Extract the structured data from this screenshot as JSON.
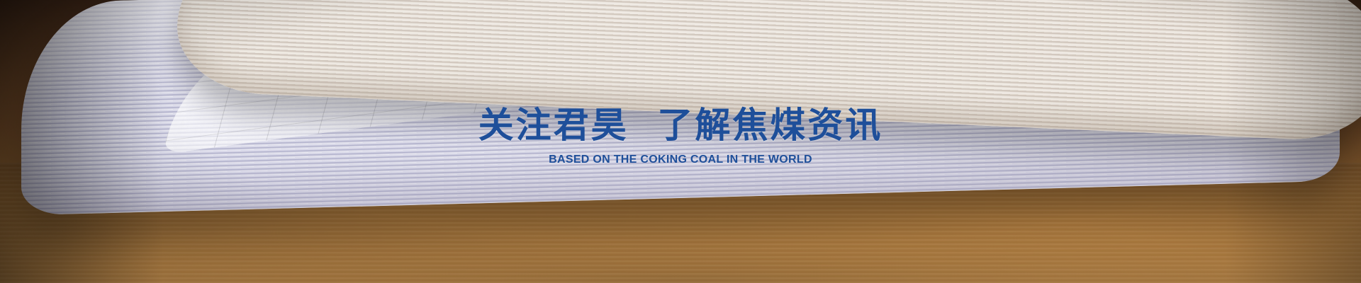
{
  "banner": {
    "title": "关注君昊  了解焦煤资讯",
    "subtitle": "BASED ON THE COKING COAL IN THE WORLD"
  },
  "colors": {
    "title": "#1e4f9a",
    "subtitle": "#1e4f9a"
  }
}
